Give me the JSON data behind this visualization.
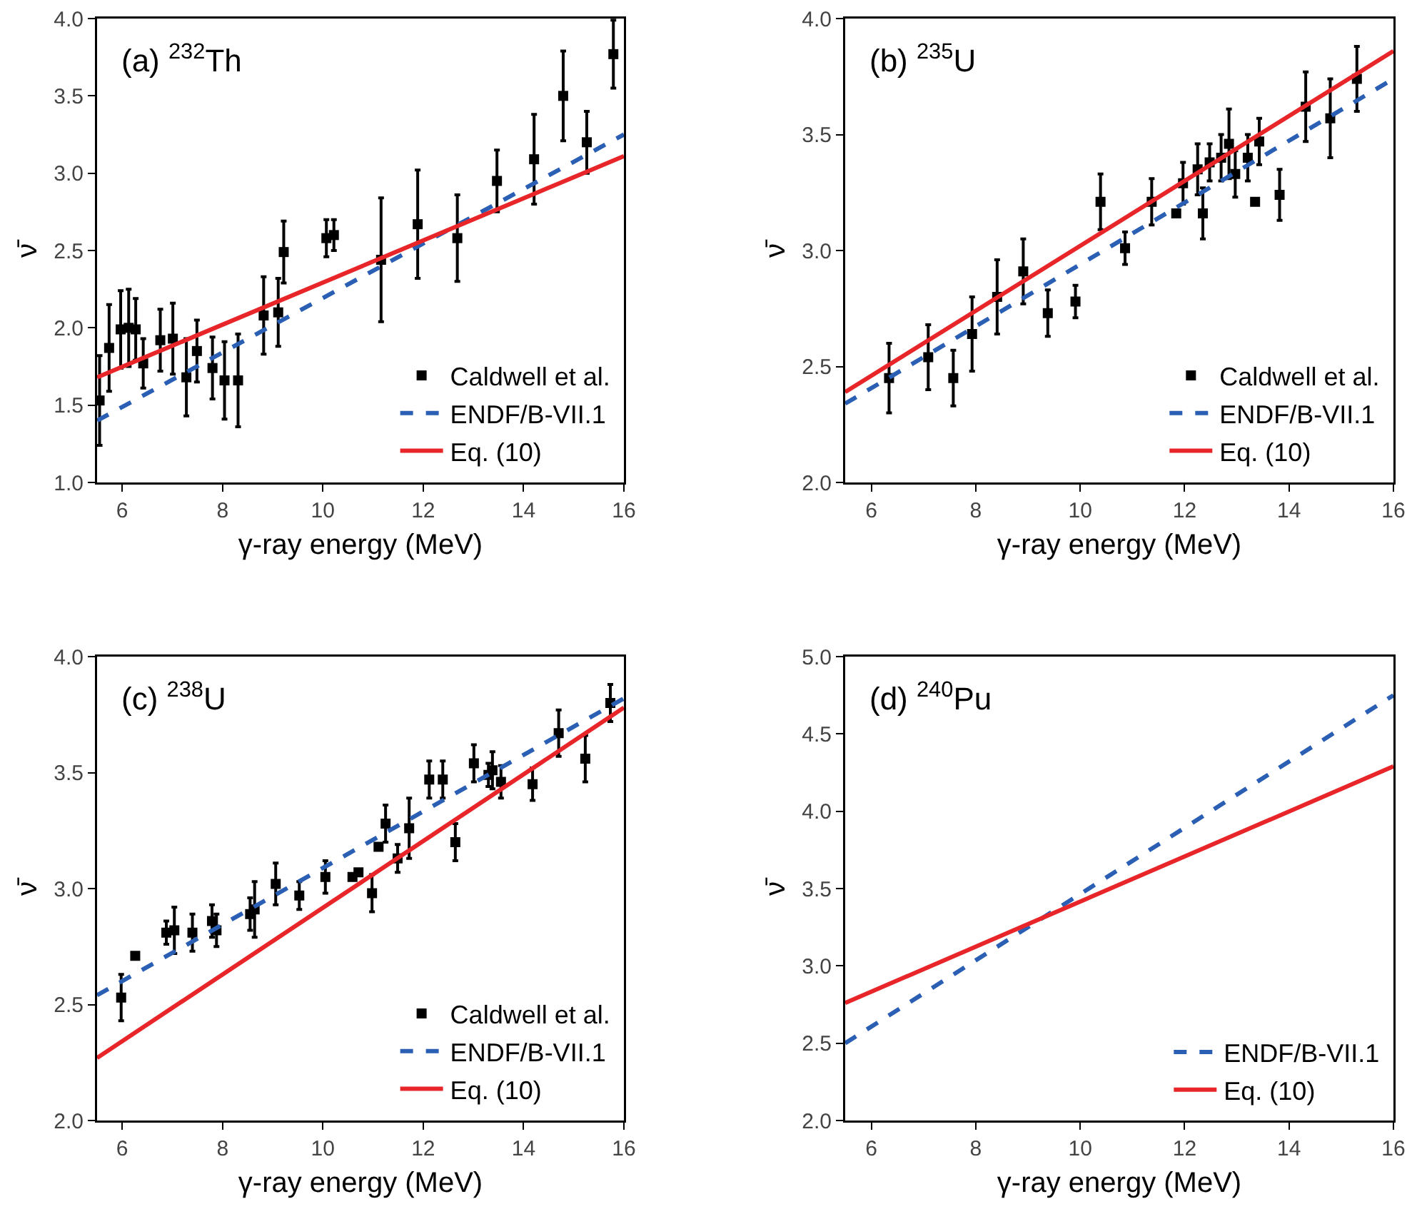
{
  "chart_data": [
    {
      "type": "scatter",
      "title": "(a) $^{232}$Th",
      "xlabel": "γ-ray energy (MeV)",
      "ylabel": "ν̄",
      "legend": "bottom right",
      "xlim": [
        5.5,
        16
      ],
      "xticks": [
        6,
        8,
        10,
        12,
        14,
        16
      ],
      "ylim": [
        1.0,
        4.0
      ],
      "yticks": [
        {
          "value": 1.0,
          "label": "1.0"
        },
        {
          "value": 1.5,
          "label": "1.5"
        },
        {
          "value": 2.0,
          "label": "2.0"
        },
        {
          "value": 2.5,
          "label": "2.5"
        },
        {
          "value": 3.0,
          "label": "3.0"
        },
        {
          "value": 3.5,
          "label": "3.5"
        },
        {
          "value": 4.0,
          "label": "4.0"
        }
      ],
      "series": [
        {
          "name": "Caldwell et al.",
          "marker": "square",
          "color": "#000000",
          "x": [
            5.55,
            5.74,
            5.97,
            6.13,
            6.27,
            6.42,
            6.76,
            7.01,
            7.28,
            7.49,
            7.8,
            8.04,
            8.31,
            8.82,
            9.11,
            9.22,
            10.07,
            10.22,
            11.16,
            11.89,
            12.68,
            13.47,
            14.21,
            14.79,
            15.26,
            15.79
          ],
          "values": [
            1.53,
            1.87,
            1.99,
            2.0,
            1.99,
            1.77,
            1.92,
            1.93,
            1.68,
            1.85,
            1.74,
            1.66,
            1.66,
            2.08,
            2.1,
            2.49,
            2.58,
            2.6,
            2.44,
            2.67,
            2.58,
            2.95,
            3.09,
            3.5,
            3.2,
            3.77
          ],
          "errors": [
            0.29,
            0.28,
            0.25,
            0.25,
            0.2,
            0.16,
            0.2,
            0.23,
            0.25,
            0.2,
            0.2,
            0.25,
            0.3,
            0.25,
            0.22,
            0.2,
            0.12,
            0.1,
            0.4,
            0.35,
            0.28,
            0.2,
            0.29,
            0.29,
            0.2,
            0.22
          ]
        },
        {
          "name": "ENDF/B-VII.1",
          "type": "line",
          "line_style": "dashed",
          "color": "#2b5fb4",
          "x": [
            5.5,
            16
          ],
          "values": [
            1.4,
            3.25
          ]
        },
        {
          "name": "Eq. (10)",
          "type": "line",
          "line_style": "solid",
          "color": "#e8262a",
          "x": [
            5.5,
            16
          ],
          "values": [
            1.68,
            3.11
          ]
        }
      ]
    },
    {
      "type": "scatter",
      "title": "(b) $^{235}$U",
      "xlabel": "γ-ray energy (MeV)",
      "ylabel": "ν̄",
      "legend": "bottom right",
      "xlim": [
        5.5,
        16
      ],
      "xticks": [
        6,
        8,
        10,
        12,
        14,
        16
      ],
      "ylim": [
        2.0,
        4.0
      ],
      "yticks": [
        {
          "value": 2.0,
          "label": "2.0"
        },
        {
          "value": 2.5,
          "label": "2.5"
        },
        {
          "value": 3.0,
          "label": "3.0"
        },
        {
          "value": 3.5,
          "label": "3.5"
        },
        {
          "value": 4.0,
          "label": "4.0"
        }
      ],
      "series": [
        {
          "name": "Caldwell et al.",
          "marker": "square",
          "color": "#000000",
          "x": [
            6.34,
            7.09,
            7.57,
            7.93,
            8.41,
            8.91,
            9.38,
            9.91,
            10.39,
            10.86,
            11.37,
            11.84,
            11.97,
            12.25,
            12.35,
            12.48,
            12.7,
            12.85,
            12.97,
            13.21,
            13.35,
            13.43,
            13.82,
            14.32,
            14.79,
            15.3
          ],
          "values": [
            2.45,
            2.54,
            2.45,
            2.64,
            2.8,
            2.91,
            2.73,
            2.78,
            3.21,
            3.01,
            3.21,
            3.16,
            3.29,
            3.35,
            3.16,
            3.38,
            3.4,
            3.46,
            3.33,
            3.4,
            3.21,
            3.47,
            3.24,
            3.62,
            3.57,
            3.74
          ],
          "errors": [
            0.15,
            0.14,
            0.12,
            0.16,
            0.16,
            0.14,
            0.1,
            0.07,
            0.12,
            0.07,
            0.1,
            null,
            0.09,
            0.11,
            0.11,
            0.08,
            0.1,
            0.15,
            0.1,
            0.1,
            null,
            0.1,
            0.11,
            0.15,
            0.17,
            0.14
          ]
        },
        {
          "name": "ENDF/B-VII.1",
          "type": "line",
          "line_style": "dashed",
          "color": "#2b5fb4",
          "x": [
            5.5,
            16
          ],
          "values": [
            2.34,
            3.74
          ]
        },
        {
          "name": "Eq. (10)",
          "type": "line",
          "line_style": "solid",
          "color": "#e8262a",
          "x": [
            5.5,
            16
          ],
          "values": [
            2.39,
            3.86
          ]
        }
      ]
    },
    {
      "type": "scatter",
      "title": "(c) $^{238}$U",
      "xlabel": "γ-ray energy (MeV)",
      "ylabel": "ν̄",
      "legend": "bottom right",
      "xlim": [
        5.5,
        16
      ],
      "xticks": [
        6,
        8,
        10,
        12,
        14,
        16
      ],
      "ylim": [
        2.0,
        4.0
      ],
      "yticks": [
        {
          "value": 2.0,
          "label": "2.0"
        },
        {
          "value": 2.5,
          "label": "2.5"
        },
        {
          "value": 3.0,
          "label": "3.0"
        },
        {
          "value": 3.5,
          "label": "3.5"
        },
        {
          "value": 4.0,
          "label": "4.0"
        }
      ],
      "series": [
        {
          "name": "Caldwell et al.",
          "marker": "square",
          "color": "#000000",
          "x": [
            5.98,
            6.26,
            6.88,
            7.04,
            7.4,
            7.79,
            7.88,
            8.55,
            8.64,
            9.06,
            9.53,
            10.05,
            10.59,
            10.71,
            10.98,
            11.11,
            11.25,
            11.49,
            11.72,
            12.12,
            12.39,
            12.64,
            13.01,
            13.3,
            13.38,
            13.55,
            14.18,
            14.7,
            15.23,
            15.73
          ],
          "values": [
            2.53,
            2.71,
            2.81,
            2.82,
            2.81,
            2.86,
            2.82,
            2.89,
            2.91,
            3.02,
            2.97,
            3.05,
            3.05,
            3.07,
            2.98,
            3.18,
            3.28,
            3.13,
            3.26,
            3.47,
            3.47,
            3.2,
            3.54,
            3.49,
            3.51,
            3.46,
            3.45,
            3.67,
            3.56,
            3.8
          ],
          "errors": [
            0.1,
            null,
            0.05,
            0.1,
            0.08,
            0.07,
            0.07,
            0.07,
            0.12,
            0.09,
            0.06,
            0.07,
            null,
            null,
            0.08,
            null,
            0.08,
            0.06,
            0.13,
            0.08,
            0.08,
            0.08,
            0.08,
            0.05,
            0.08,
            0.07,
            0.07,
            0.1,
            0.1,
            0.08
          ]
        },
        {
          "name": "ENDF/B-VII.1",
          "type": "line",
          "line_style": "dashed",
          "color": "#2b5fb4",
          "x": [
            5.5,
            16
          ],
          "values": [
            2.54,
            3.82
          ]
        },
        {
          "name": "Eq. (10)",
          "type": "line",
          "line_style": "solid",
          "color": "#e8262a",
          "x": [
            5.5,
            16
          ],
          "values": [
            2.27,
            3.78
          ]
        }
      ]
    },
    {
      "type": "line",
      "title": "(d) $^{240}$Pu",
      "xlabel": "γ-ray energy (MeV)",
      "ylabel": "ν̄",
      "legend": "bottom right",
      "xlim": [
        5.5,
        16
      ],
      "xticks": [
        6,
        8,
        10,
        12,
        14,
        16
      ],
      "ylim": [
        2.0,
        5.0
      ],
      "yticks": [
        {
          "value": 2.0,
          "label": "2.0"
        },
        {
          "value": 2.5,
          "label": "2.5"
        },
        {
          "value": 3.0,
          "label": "3.0"
        },
        {
          "value": 3.5,
          "label": "3.5"
        },
        {
          "value": 4.0,
          "label": "4.0"
        },
        {
          "value": 4.5,
          "label": "4.5"
        },
        {
          "value": 5.0,
          "label": "5.0"
        }
      ],
      "series": [
        {
          "name": "ENDF/B-VII.1",
          "line_style": "dashed",
          "color": "#2b5fb4",
          "x": [
            5.5,
            16
          ],
          "values": [
            2.5,
            4.75
          ]
        },
        {
          "name": "Eq. (10)",
          "line_style": "solid",
          "color": "#e8262a",
          "x": [
            5.5,
            16
          ],
          "values": [
            2.76,
            4.29
          ]
        }
      ]
    }
  ]
}
